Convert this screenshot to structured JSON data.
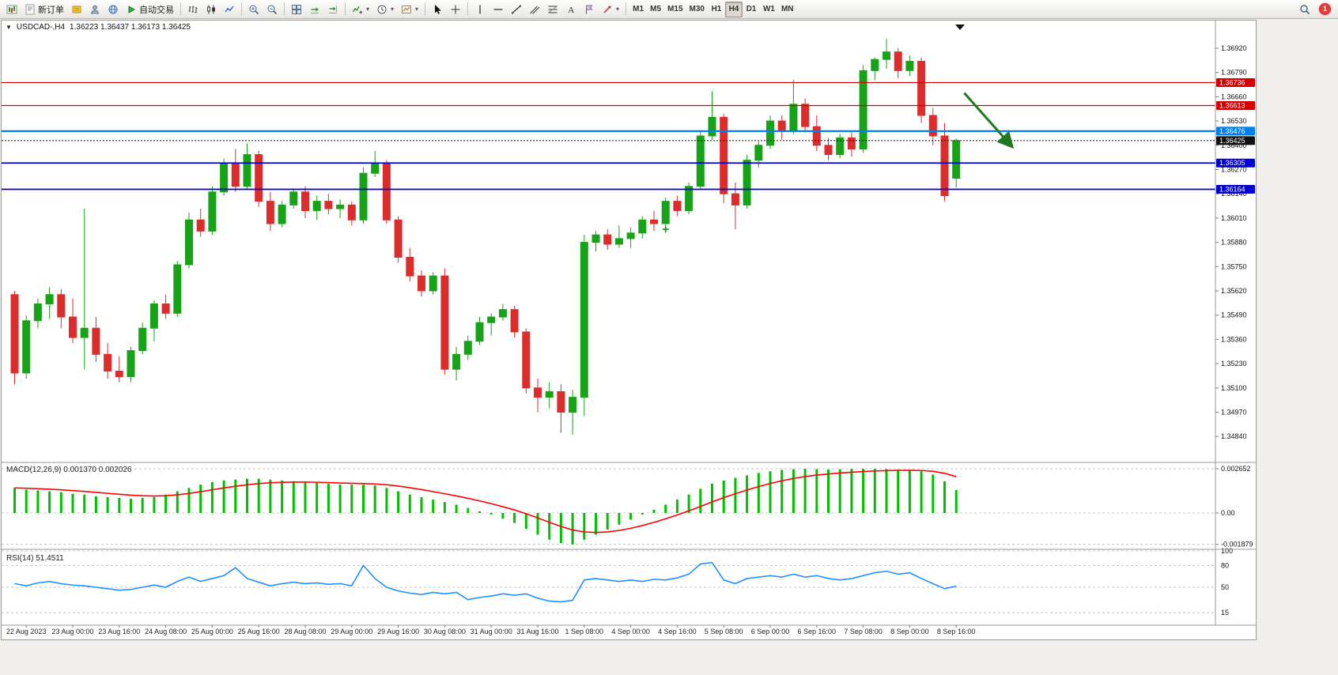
{
  "toolbar": {
    "new_order_label": "新订单",
    "auto_trading_label": "自动交易",
    "timeframes": [
      "M1",
      "M5",
      "M15",
      "M30",
      "H1",
      "H4",
      "D1",
      "W1",
      "MN"
    ],
    "active_timeframe": "H4",
    "notification_badge": "1"
  },
  "header": {
    "collapse_icon": "▼",
    "symbol_period": "USDCAD-,H4",
    "ohlc_text": "1.36223 1.36437 1.36173 1.36425"
  },
  "chart_data": {
    "type": "candlestick",
    "symbol": "USDCAD",
    "timeframe": "H4",
    "current_ohlc": {
      "open": "1.36223",
      "high": "1.36437",
      "low": "1.36173",
      "close": "1.36425"
    },
    "colors": {
      "up": "#17a317",
      "down": "#dd2c2c",
      "background": "#ffffff",
      "axis_text": "#111111"
    },
    "price_ticks": [
      "1.36920",
      "1.36790",
      "1.36660",
      "1.36530",
      "1.36400",
      "1.36270",
      "1.36140",
      "1.36010",
      "1.35880",
      "1.35750",
      "1.35620",
      "1.35490",
      "1.35360",
      "1.35230",
      "1.35100",
      "1.34970",
      "1.34840"
    ],
    "x_labels": [
      "22 Aug 2023",
      "23 Aug 00:00",
      "23 Aug 16:00",
      "24 Aug 08:00",
      "25 Aug 00:00",
      "25 Aug 16:00",
      "28 Aug 08:00",
      "29 Aug 00:00",
      "29 Aug 16:00",
      "30 Aug 08:00",
      "31 Aug 00:00",
      "31 Aug 16:00",
      "1 Sep 08:00",
      "4 Sep 00:00",
      "4 Sep 16:00",
      "5 Sep 08:00",
      "6 Sep 00:00",
      "6 Sep 16:00",
      "7 Sep 08:00",
      "8 Sep 00:00",
      "8 Sep 16:00"
    ],
    "candles": [
      [
        1.356,
        1.3562,
        1.3512,
        1.3518
      ],
      [
        1.3518,
        1.3549,
        1.3515,
        1.3546
      ],
      [
        1.3546,
        1.3558,
        1.3542,
        1.3555
      ],
      [
        1.3555,
        1.3564,
        1.3547,
        1.356
      ],
      [
        1.356,
        1.3563,
        1.3542,
        1.3548
      ],
      [
        1.3548,
        1.3558,
        1.3534,
        1.3537
      ],
      [
        1.3537,
        1.3606,
        1.352,
        1.3542
      ],
      [
        1.3542,
        1.3548,
        1.3524,
        1.3528
      ],
      [
        1.3528,
        1.3534,
        1.3515,
        1.3519
      ],
      [
        1.3519,
        1.3527,
        1.3513,
        1.3516
      ],
      [
        1.3516,
        1.3532,
        1.3513,
        1.353
      ],
      [
        1.353,
        1.3545,
        1.3528,
        1.3542
      ],
      [
        1.3542,
        1.3557,
        1.3535,
        1.3555
      ],
      [
        1.3555,
        1.356,
        1.3547,
        1.355
      ],
      [
        1.355,
        1.3578,
        1.3548,
        1.3576
      ],
      [
        1.3576,
        1.3604,
        1.3574,
        1.36
      ],
      [
        1.36,
        1.3606,
        1.3591,
        1.3594
      ],
      [
        1.3594,
        1.3618,
        1.3592,
        1.3615
      ],
      [
        1.3615,
        1.3633,
        1.3613,
        1.363
      ],
      [
        1.363,
        1.3638,
        1.3615,
        1.3618
      ],
      [
        1.3618,
        1.3641,
        1.3616,
        1.3635
      ],
      [
        1.3635,
        1.3637,
        1.3607,
        1.361
      ],
      [
        1.361,
        1.3615,
        1.3594,
        1.3598
      ],
      [
        1.3598,
        1.361,
        1.3596,
        1.3608
      ],
      [
        1.3608,
        1.3617,
        1.3606,
        1.3615
      ],
      [
        1.3615,
        1.3618,
        1.3601,
        1.3605
      ],
      [
        1.3605,
        1.3613,
        1.36,
        1.361
      ],
      [
        1.361,
        1.3614,
        1.3603,
        1.3606
      ],
      [
        1.3606,
        1.3611,
        1.3601,
        1.3608
      ],
      [
        1.3608,
        1.361,
        1.3597,
        1.36
      ],
      [
        1.36,
        1.3628,
        1.3598,
        1.3625
      ],
      [
        1.3625,
        1.3637,
        1.3623,
        1.363
      ],
      [
        1.363,
        1.3632,
        1.3598,
        1.36
      ],
      [
        1.36,
        1.3602,
        1.3577,
        1.358
      ],
      [
        1.358,
        1.3585,
        1.3567,
        1.357
      ],
      [
        1.357,
        1.3573,
        1.3559,
        1.3562
      ],
      [
        1.3562,
        1.3572,
        1.356,
        1.357
      ],
      [
        1.357,
        1.3574,
        1.3517,
        1.352
      ],
      [
        1.352,
        1.3532,
        1.3514,
        1.3528
      ],
      [
        1.3528,
        1.3538,
        1.3525,
        1.3535
      ],
      [
        1.3535,
        1.3548,
        1.3533,
        1.3545
      ],
      [
        1.3545,
        1.355,
        1.3538,
        1.3548
      ],
      [
        1.3548,
        1.3555,
        1.3546,
        1.3552
      ],
      [
        1.3552,
        1.3554,
        1.3537,
        1.354
      ],
      [
        1.354,
        1.3542,
        1.3507,
        1.351
      ],
      [
        1.351,
        1.3515,
        1.3497,
        1.3505
      ],
      [
        1.3505,
        1.3513,
        1.3499,
        1.3508
      ],
      [
        1.3508,
        1.3512,
        1.3486,
        1.3497
      ],
      [
        1.3497,
        1.3509,
        1.3485,
        1.3505
      ],
      [
        1.3505,
        1.3592,
        1.3495,
        1.3588
      ],
      [
        1.3588,
        1.3594,
        1.3583,
        1.3592
      ],
      [
        1.3592,
        1.3595,
        1.3584,
        1.3587
      ],
      [
        1.3587,
        1.3597,
        1.3585,
        1.359
      ],
      [
        1.359,
        1.3596,
        1.3585,
        1.3593
      ],
      [
        1.3593,
        1.3602,
        1.359,
        1.36
      ],
      [
        1.36,
        1.3605,
        1.3594,
        1.3598
      ],
      [
        1.3598,
        1.3612,
        1.3596,
        1.361
      ],
      [
        1.361,
        1.3613,
        1.3602,
        1.3605
      ],
      [
        1.3605,
        1.362,
        1.3603,
        1.3618
      ],
      [
        1.3618,
        1.3648,
        1.3616,
        1.3645
      ],
      [
        1.3645,
        1.3669,
        1.3643,
        1.3655
      ],
      [
        1.3655,
        1.3657,
        1.3609,
        1.3614
      ],
      [
        1.3614,
        1.362,
        1.3595,
        1.3608
      ],
      [
        1.3608,
        1.3635,
        1.3606,
        1.3632
      ],
      [
        1.3632,
        1.3642,
        1.3628,
        1.364
      ],
      [
        1.364,
        1.3656,
        1.3638,
        1.3653
      ],
      [
        1.3653,
        1.3656,
        1.3643,
        1.3648
      ],
      [
        1.3648,
        1.3675,
        1.3646,
        1.3662
      ],
      [
        1.3662,
        1.3665,
        1.3647,
        1.365
      ],
      [
        1.365,
        1.3656,
        1.3637,
        1.364
      ],
      [
        1.364,
        1.3644,
        1.3632,
        1.3635
      ],
      [
        1.3635,
        1.3646,
        1.3633,
        1.3644
      ],
      [
        1.3644,
        1.3647,
        1.3634,
        1.3638
      ],
      [
        1.3638,
        1.3683,
        1.3636,
        1.368
      ],
      [
        1.368,
        1.3687,
        1.3675,
        1.3686
      ],
      [
        1.3686,
        1.3697,
        1.3681,
        1.369
      ],
      [
        1.369,
        1.3692,
        1.3676,
        1.368
      ],
      [
        1.368,
        1.3688,
        1.3677,
        1.3685
      ],
      [
        1.3685,
        1.3687,
        1.3652,
        1.3656
      ],
      [
        1.3656,
        1.366,
        1.364,
        1.3645
      ],
      [
        1.3645,
        1.3652,
        1.361,
        1.3613
      ],
      [
        1.36223,
        1.36437,
        1.36173,
        1.36425
      ]
    ],
    "levels": [
      {
        "price": 1.36736,
        "label": "1.36736",
        "color": "#d20000",
        "width": 1.2
      },
      {
        "price": 1.36613,
        "label": "1.36613",
        "color": "#d20000",
        "width": 1.2
      },
      {
        "price": 1.36476,
        "label": "1.36476",
        "color": "#0080f0",
        "width": 2.2
      },
      {
        "price": 1.36305,
        "label": "1.36305",
        "color": "#0000d2",
        "width": 1.8
      },
      {
        "price": 1.36164,
        "label": "1.36164",
        "color": "#0000d2",
        "width": 1.8
      }
    ],
    "current_price": {
      "price": 1.36425,
      "label": "1.36425",
      "color": "#111111"
    },
    "annotations": {
      "arrow": {
        "from_index": 82,
        "from_price": 1.3668,
        "to_index": 86,
        "to_price": 1.364,
        "color": "#1f7a1f"
      },
      "cross_marker": {
        "index": 56,
        "price": 1.3595,
        "color": "#00a000"
      }
    },
    "indicators": [
      {
        "name": "MACD",
        "display": "MACD(12,26,9)",
        "values_text": "0.001370 0.002026",
        "histogram_color": "#00c000",
        "signal_color": "#ff0000",
        "axis_ticks": [
          {
            "v": 0.002652,
            "label": "0.002652"
          },
          {
            "v": 0.0,
            "label": "0.00"
          },
          {
            "v": -0.001879,
            "label": "-0.001879"
          }
        ],
        "histogram": [
          0.0015,
          0.0014,
          0.00135,
          0.0013,
          0.00125,
          0.00115,
          0.0011,
          0.001,
          0.00095,
          0.0009,
          0.00085,
          0.0009,
          0.00095,
          0.0011,
          0.0013,
          0.0015,
          0.0017,
          0.00185,
          0.00195,
          0.002,
          0.00205,
          0.00205,
          0.002,
          0.00195,
          0.0019,
          0.00185,
          0.0018,
          0.00175,
          0.0017,
          0.0017,
          0.0017,
          0.00165,
          0.0015,
          0.0013,
          0.0011,
          0.00095,
          0.0008,
          0.00065,
          0.0005,
          0.0003,
          0.0001,
          -0.0001,
          -0.00035,
          -0.0006,
          -0.00095,
          -0.0013,
          -0.0016,
          -0.0018,
          -0.00188,
          -0.0016,
          -0.0013,
          -0.001,
          -0.0007,
          -0.0004,
          -0.0001,
          0.0002,
          0.0005,
          0.0008,
          0.0011,
          0.00145,
          0.00175,
          0.00195,
          0.0021,
          0.00225,
          0.0024,
          0.0025,
          0.00258,
          0.00262,
          0.00265,
          0.00263,
          0.0026,
          0.00262,
          0.00264,
          0.00265,
          0.00264,
          0.00263,
          0.0026,
          0.00258,
          0.0025,
          0.0023,
          0.0019,
          0.00137
        ]
      },
      {
        "name": "RSI",
        "display": "RSI(14)",
        "value_text": "51.4511",
        "line_color": "#1e90ff",
        "levels": [
          {
            "v": 100,
            "label": "100"
          },
          {
            "v": 80,
            "label": "80"
          },
          {
            "v": 50,
            "label": "50"
          },
          {
            "v": 15,
            "label": "15"
          }
        ],
        "values": [
          55,
          52,
          56,
          58,
          55,
          53,
          52,
          50,
          48,
          46,
          47,
          50,
          53,
          50,
          58,
          64,
          58,
          62,
          66,
          77,
          62,
          57,
          52,
          55,
          57,
          55,
          56,
          54,
          55,
          52,
          80,
          62,
          50,
          45,
          42,
          40,
          43,
          41,
          43,
          33,
          36,
          38,
          41,
          39,
          41,
          35,
          31,
          30,
          32,
          60,
          62,
          60,
          58,
          60,
          58,
          61,
          60,
          63,
          68,
          82,
          84,
          60,
          55,
          62,
          64,
          66,
          64,
          68,
          64,
          66,
          62,
          60,
          62,
          66,
          70,
          72,
          68,
          70,
          62,
          55,
          48,
          51.45
        ]
      }
    ]
  }
}
